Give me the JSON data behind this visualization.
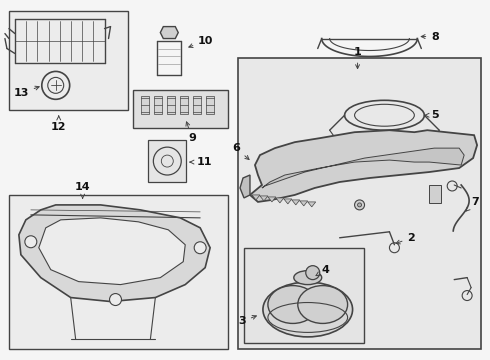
{
  "bg_color": "#f5f5f5",
  "line_color": "#444444",
  "label_color": "#111111",
  "box_face": "#efefef",
  "font_size": 8,
  "dpi": 100,
  "figw": 4.9,
  "figh": 3.6
}
